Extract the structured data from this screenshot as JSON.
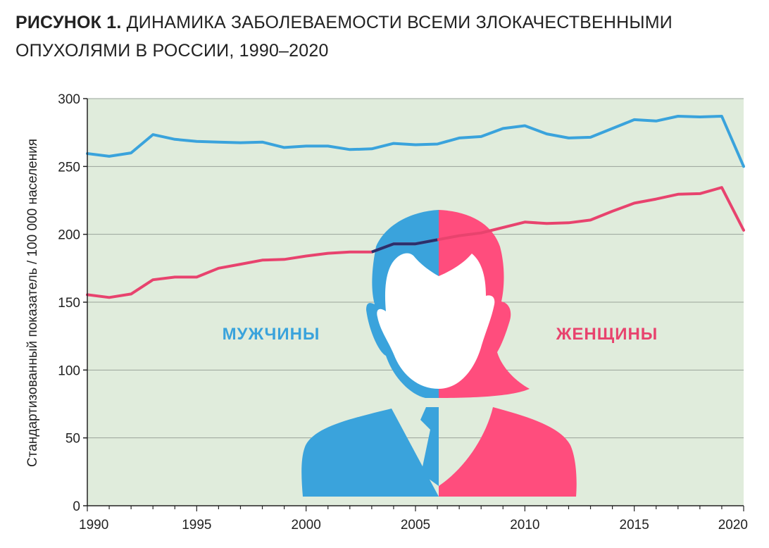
{
  "title": {
    "bold": "РИСУНОК 1.",
    "line1": "ДИНАМИКА ЗАБОЛЕВАЕМОСТИ ВСЕМИ ЗЛОКАЧЕСТВЕННЫМИ",
    "line2": "ОПУХОЛЯМИ В РОССИИ,  1990–2020"
  },
  "colors": {
    "men": "#3aa3dc",
    "women": "#e8436e",
    "women_fill": "#ff4d7d",
    "plot_bg": "#e0ecdc",
    "overlap": "#2b2f6b"
  },
  "chart_data": {
    "type": "line",
    "title": "ДИНАМИКА ЗАБОЛЕВАЕМОСТИ ВСЕМИ ЗЛОКАЧЕСТВЕННЫМИ ОПУХОЛЯМИ В РОССИИ, 1990–2020",
    "xlabel": "",
    "ylabel": "Стандартизованный показатель / 100 000 населения",
    "xlim": [
      1990,
      2020
    ],
    "ylim": [
      0,
      300
    ],
    "x_ticks": [
      "1990",
      "1995",
      "2000",
      "2005",
      "2010",
      "2015",
      "2020"
    ],
    "y_ticks": [
      "0",
      "50",
      "100",
      "150",
      "200",
      "250",
      "300"
    ],
    "grid": true,
    "x": [
      1990,
      1991,
      1992,
      1993,
      1994,
      1995,
      1996,
      1997,
      1998,
      1999,
      2000,
      2001,
      2002,
      2003,
      2004,
      2005,
      2006,
      2007,
      2008,
      2009,
      2010,
      2011,
      2012,
      2013,
      2014,
      2015,
      2016,
      2017,
      2018,
      2019,
      2020
    ],
    "series": [
      {
        "name": "МУЖЧИНЫ",
        "color": "#3aa3dc",
        "values": [
          259.5,
          257.5,
          260,
          273.5,
          270,
          268.5,
          268,
          267.5,
          268,
          264,
          265,
          265,
          262.5,
          263,
          267,
          266,
          266.5,
          271,
          272,
          278,
          280,
          274,
          271,
          271.5,
          278,
          284.5,
          283.5,
          287,
          286.5,
          287,
          250
        ]
      },
      {
        "name": "ЖЕНЩИНЫ",
        "color": "#e8436e",
        "values": [
          155.5,
          153.5,
          156,
          166.5,
          168.5,
          168.5,
          175,
          178,
          181,
          181.5,
          184,
          186,
          187,
          187,
          193,
          193,
          196,
          199,
          201,
          205,
          209,
          208,
          208.5,
          210.5,
          217,
          223,
          226,
          229.5,
          230,
          234.5,
          203
        ]
      }
    ],
    "legend_labels": [
      "МУЖЧИНЫ",
      "ЖЕНЩИНЫ"
    ]
  }
}
